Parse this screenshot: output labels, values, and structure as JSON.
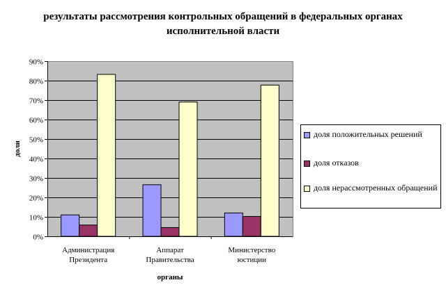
{
  "chart_data": {
    "type": "bar",
    "title": "результаты рассмотрения контрольных обращений в федеральных органах исполнительной власти",
    "xlabel": "органы",
    "ylabel": "доли",
    "ylim": [
      0,
      0.9
    ],
    "yticks": [
      "0%",
      "10%",
      "20%",
      "30%",
      "40%",
      "50%",
      "60%",
      "70%",
      "80%",
      "90%"
    ],
    "categories": [
      [
        "Администрация",
        "Президента"
      ],
      [
        "Аппарат",
        "Правительства"
      ],
      [
        "Министерство",
        "юстиции"
      ]
    ],
    "series": [
      {
        "name": "доля положительных решений",
        "values": [
          0.11,
          0.265,
          0.12
        ],
        "color": "#9999ff"
      },
      {
        "name": "доля отказов",
        "values": [
          0.058,
          0.045,
          0.102
        ],
        "color": "#993366"
      },
      {
        "name": "доля нерассмотренных обращений",
        "values": [
          0.832,
          0.69,
          0.777
        ],
        "color": "#ffffcc"
      }
    ],
    "grid": true,
    "legend_position": "right",
    "plot_background": "#c0c0c0"
  }
}
